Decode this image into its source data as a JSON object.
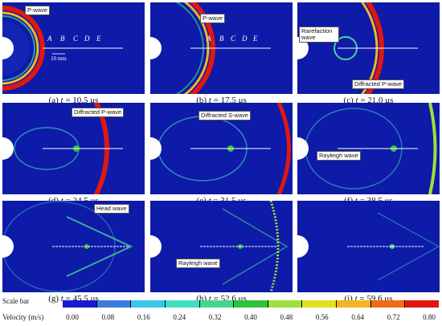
{
  "panels": [
    {
      "letter": "(a)",
      "time": "10.5 μs",
      "labels": {
        "p_wave": "P-wave"
      },
      "points": [
        "A",
        "B",
        "C",
        "D",
        "E"
      ],
      "scale_text": "10 mm"
    },
    {
      "letter": "(b)",
      "time": "17.5 μs",
      "labels": {
        "p_wave": "P-wave"
      },
      "points": [
        "A",
        "B",
        "C",
        "D",
        "E"
      ]
    },
    {
      "letter": "(c)",
      "time": "21.0 μs",
      "labels": {
        "rarefaction": "Rarefaction wave",
        "diffracted_p": "Diffracted P-wave"
      }
    },
    {
      "letter": "(d)",
      "time": "24.5 μs",
      "labels": {
        "diffracted_p": "Diffracted P-wave"
      }
    },
    {
      "letter": "(e)",
      "time": "31.5 μs",
      "labels": {
        "diffracted_s": "Diffracted S-wave"
      }
    },
    {
      "letter": "(f)",
      "time": "38.5 μs",
      "labels": {
        "rayleigh": "Rayleigh wave"
      }
    },
    {
      "letter": "(g)",
      "time": "45.5 μs",
      "labels": {
        "head": "Head wave"
      }
    },
    {
      "letter": "(h)",
      "time": "52.6 μs",
      "labels": {
        "rayleigh": "Rayleigh wave"
      }
    },
    {
      "letter": "(i)",
      "time": "59.6 μs",
      "labels": {}
    }
  ],
  "caption_t": "t",
  "caption_eq": " = ",
  "scale": {
    "title": "Scale bar",
    "unit_label": "Velocity (m/s)",
    "ticks": [
      "0.00",
      "0.08",
      "0.16",
      "0.24",
      "0.32",
      "0.40",
      "0.48",
      "0.56",
      "0.64",
      "0.72",
      "0.80"
    ],
    "colors": [
      "#1a1ad0",
      "#3a7de0",
      "#38c8e8",
      "#3fe0c0",
      "#43d78e",
      "#2fc23a",
      "#9ee03a",
      "#e0e020",
      "#f2b520",
      "#f06a18",
      "#e01810"
    ]
  }
}
